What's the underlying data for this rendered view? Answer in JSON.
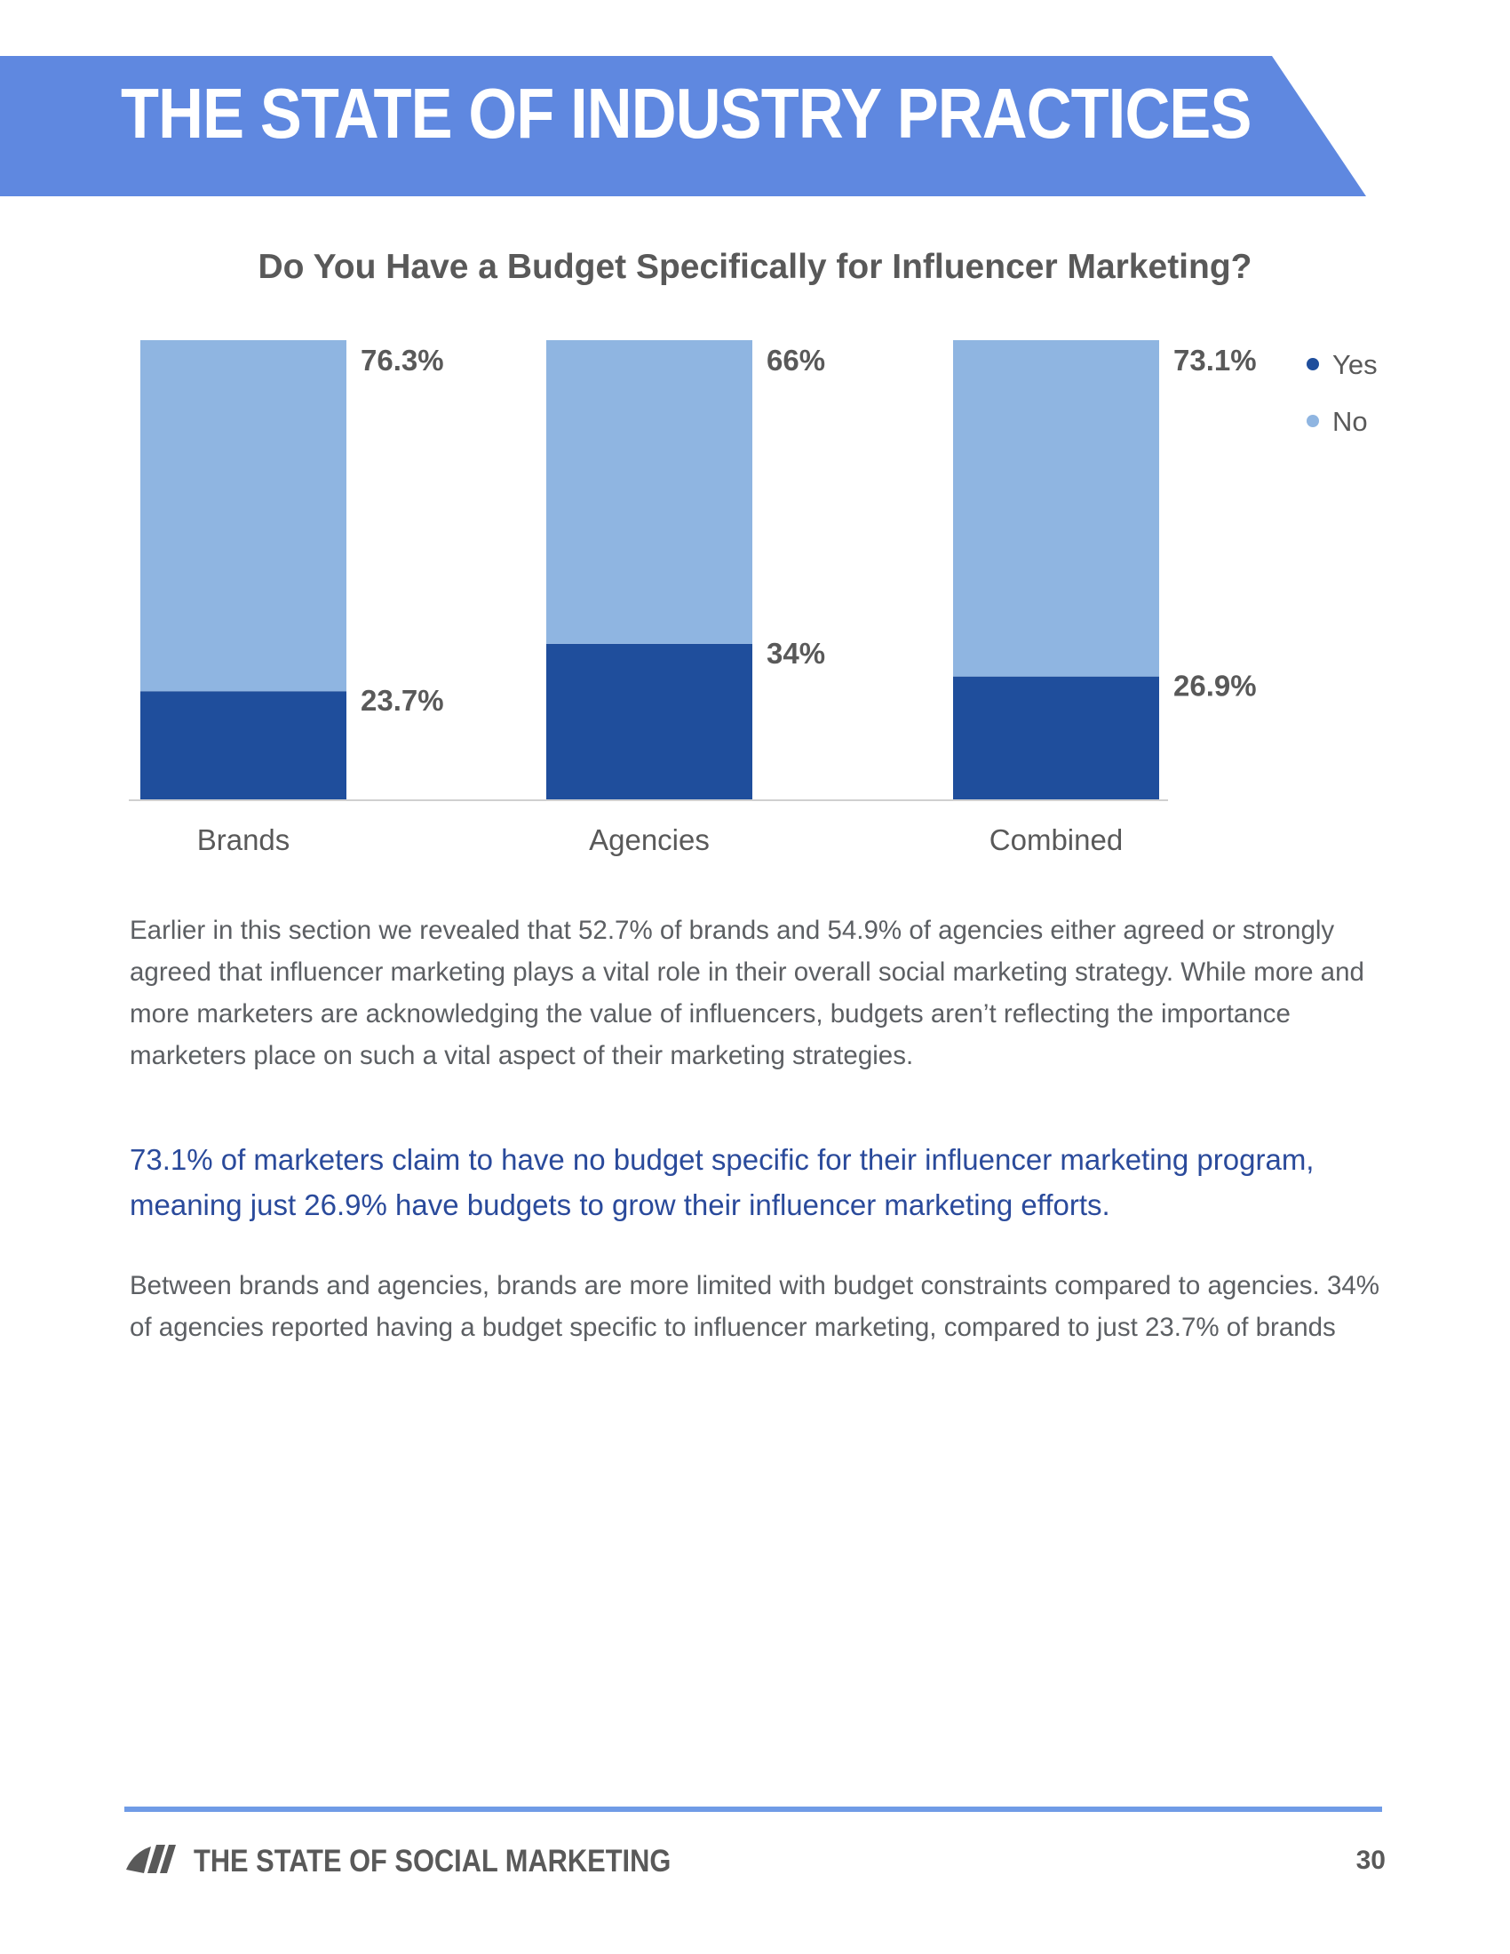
{
  "header": {
    "title": "THE STATE OF INDUSTRY PRACTICES",
    "banner_color": "#5f88e0"
  },
  "chart_data": {
    "type": "bar",
    "stacked": true,
    "title": "Do You Have a Budget Specifically for Influencer Marketing?",
    "categories": [
      "Brands",
      "Agencies",
      "Combined"
    ],
    "series": [
      {
        "name": "Yes",
        "values": [
          23.7,
          34,
          26.9
        ],
        "labels": [
          "23.7%",
          "34%",
          "26.9%"
        ],
        "color": "#1f4e9c"
      },
      {
        "name": "No",
        "values": [
          76.3,
          66,
          73.1
        ],
        "labels": [
          "76.3%",
          "66%",
          "73.1%"
        ],
        "color": "#8fb5e1"
      }
    ],
    "ylim": [
      0,
      100
    ],
    "xlabel": "",
    "ylabel": "",
    "legend": "top-right"
  },
  "body": {
    "paragraph1": "Earlier in this section we revealed that 52.7% of brands and 54.9% of agencies either agreed or strongly agreed that influencer marketing plays a vital role in their overall social marketing strategy. While more and more marketers are acknowledging the value of influencers, budgets aren’t reflecting the importance marketers place on such a vital aspect of their marketing strategies.",
    "highlight": "73.1% of marketers claim to have no budget specific for their influencer marketing program, meaning just 26.9% have budgets to grow their influencer marketing efforts.",
    "paragraph2": "Between brands and agencies, brands are more limited with budget constraints compared to agencies. 34% of agencies reported having a budget specific to influencer marketing, compared to just 23.7% of brands"
  },
  "footer": {
    "logo_icon": "sprout-logo-icon",
    "title": "THE STATE OF SOCIAL MARKETING",
    "page_number": "30"
  }
}
